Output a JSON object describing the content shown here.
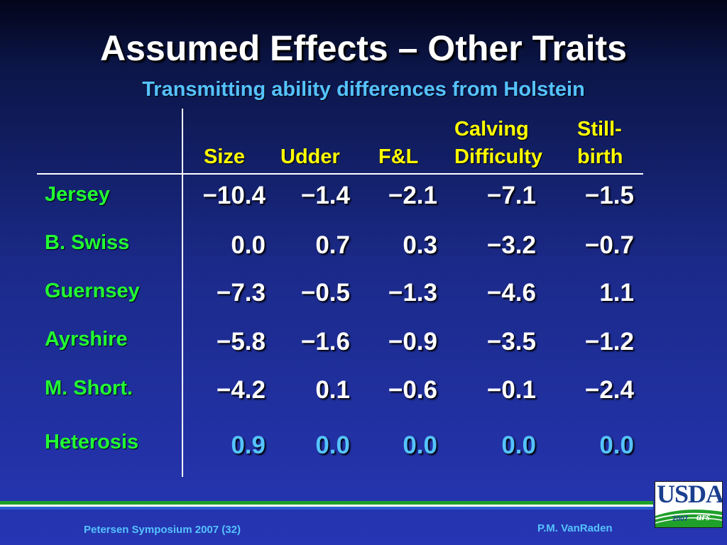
{
  "slide": {
    "title": "Assumed Effects – Other Traits",
    "subtitle": "Transmitting ability differences from Holstein"
  },
  "table": {
    "columns": [
      {
        "line1": "",
        "line2": "Size"
      },
      {
        "line1": "",
        "line2": "Udder"
      },
      {
        "line1": "",
        "line2": "F&L"
      },
      {
        "line1": "Calving",
        "line2": "Difficulty"
      },
      {
        "line1": "Still-",
        "line2": "birth"
      }
    ],
    "rows": [
      {
        "label": "Jersey",
        "values": [
          "−10.4",
          "−1.4",
          "−2.1",
          "−7.1",
          "−1.5"
        ]
      },
      {
        "label": "B. Swiss",
        "values": [
          "0.0",
          "0.7",
          "0.3",
          "−3.2",
          "−0.7"
        ]
      },
      {
        "label": "Guernsey",
        "values": [
          "−7.3",
          "−0.5",
          "−1.3",
          "−4.6",
          "1.1"
        ]
      },
      {
        "label": "Ayrshire",
        "values": [
          "−5.8",
          "−1.6",
          "−0.9",
          "−3.5",
          "−1.2"
        ]
      },
      {
        "label": "M. Short.",
        "values": [
          "−4.2",
          "0.1",
          "−0.6",
          "−0.1",
          "−2.4"
        ]
      },
      {
        "label": "Heterosis",
        "values": [
          "0.9",
          "0.0",
          "0.0",
          "0.0",
          "0.0"
        ]
      }
    ]
  },
  "footer": {
    "left": "Petersen Symposium 2007 (32)",
    "right": "P.M. VanRaden"
  },
  "logo": {
    "text": "USDA",
    "year": "2007",
    "mark": "ars"
  },
  "colors": {
    "title": "#ffffff",
    "subtitle": "#55c3ff",
    "column_header": "#ffff00",
    "row_label": "#22ff33",
    "value": "#ffffff",
    "heterosis_value": "#55c3ff",
    "stripe_green": "#1fa02a",
    "stripe_blue": "#2b5fd0"
  }
}
